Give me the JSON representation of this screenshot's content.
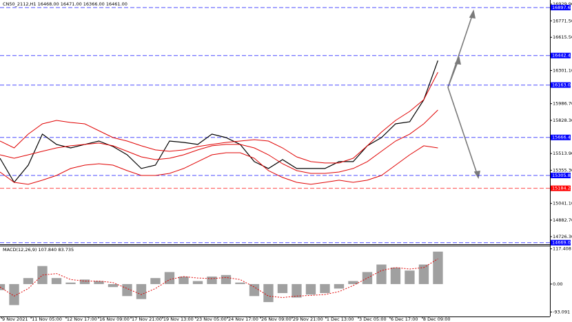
{
  "chart_data": [
    {
      "type": "line",
      "title": "CN50_2112,H1  16468.00 16471.00 16366.00 16461.00",
      "x": [
        0,
        1,
        2,
        3,
        4,
        5,
        6,
        7,
        8,
        9,
        10,
        11,
        12,
        13,
        14,
        15,
        16,
        17,
        18,
        19,
        20,
        21,
        22,
        23,
        24,
        25,
        26,
        27,
        28,
        29,
        30,
        31
      ],
      "xlim": [
        0,
        38.93
      ],
      "ylim": [
        14654,
        16969
      ],
      "yticks": [
        {
          "value": 16929.9,
          "label": "16929.90"
        },
        {
          "value": 16771.5,
          "label": "16771.50"
        },
        {
          "value": 16615.5,
          "label": "16615.50"
        },
        {
          "value": 16301.1,
          "label": "16301.10"
        },
        {
          "value": 15986.7,
          "label": "15986.70"
        },
        {
          "value": 15828.3,
          "label": "15828.30"
        },
        {
          "value": 15513.9,
          "label": "15513.90"
        },
        {
          "value": 15355.3,
          "label": "15355.30"
        },
        {
          "value": 15041.1,
          "label": "15041.10"
        },
        {
          "value": 14882.7,
          "label": "14882.70"
        },
        {
          "value": 14726.3,
          "label": "14726.30"
        }
      ],
      "levels": [
        {
          "value": 16897.6,
          "label": "16897.60",
          "color": "#0000ff"
        },
        {
          "value": 16442.48,
          "label": "16442.48",
          "color": "#0000ff"
        },
        {
          "value": 16163,
          "label": "16163.00",
          "color": "#0000ff"
        },
        {
          "value": 15666.41,
          "label": "15666.41",
          "color": "#0000ff"
        },
        {
          "value": 15305.81,
          "label": "15305.81",
          "color": "#0000ff"
        },
        {
          "value": 15184.26,
          "label": "15184.26",
          "color": "#ff0000"
        },
        {
          "value": 14669.06,
          "label": "14669.06",
          "color": "#0000ff"
        }
      ],
      "series": [
        {
          "color": "#000000",
          "width": 1.2,
          "values": [
            15469,
            15241,
            15404,
            15698,
            15600,
            15567,
            15600,
            15632,
            15580,
            15502,
            15372,
            15404,
            15632,
            15619,
            15600,
            15698,
            15665,
            15600,
            15437,
            15372,
            15456,
            15372,
            15372,
            15372,
            15437,
            15437,
            15587,
            15665,
            15795,
            15815,
            16023,
            16395
          ]
        },
        {
          "color": "#e00000",
          "width": 1,
          "values": [
            15632,
            15567,
            15698,
            15795,
            15828,
            15808,
            15795,
            15730,
            15665,
            15632,
            15587,
            15548,
            15535,
            15548,
            15580,
            15600,
            15619,
            15632,
            15645,
            15632,
            15567,
            15482,
            15437,
            15424,
            15424,
            15469,
            15587,
            15717,
            15828,
            15913,
            16024,
            16284
          ]
        },
        {
          "color": "#e00000",
          "width": 1,
          "values": [
            15502,
            15469,
            15502,
            15535,
            15567,
            15587,
            15600,
            15613,
            15587,
            15535,
            15482,
            15456,
            15469,
            15502,
            15548,
            15587,
            15600,
            15600,
            15567,
            15502,
            15417,
            15352,
            15326,
            15326,
            15339,
            15372,
            15437,
            15535,
            15632,
            15698,
            15795,
            15926
          ]
        },
        {
          "color": "#e00000",
          "width": 1,
          "values": [
            15339,
            15241,
            15222,
            15261,
            15306,
            15372,
            15404,
            15417,
            15404,
            15352,
            15306,
            15306,
            15326,
            15372,
            15437,
            15502,
            15521,
            15521,
            15469,
            15352,
            15287,
            15241,
            15222,
            15241,
            15261,
            15241,
            15261,
            15306,
            15404,
            15502,
            15587,
            15567
          ]
        }
      ]
    },
    {
      "type": "bar",
      "title": "MACD(12,26,9) 107.840 83.735",
      "x": [
        0,
        1,
        2,
        3,
        4,
        5,
        6,
        7,
        8,
        9,
        10,
        11,
        12,
        13,
        14,
        15,
        16,
        17,
        18,
        19,
        20,
        21,
        22,
        23,
        24,
        25,
        26,
        27,
        28,
        29,
        30,
        31
      ],
      "xlim": [
        0,
        38.93
      ],
      "ylim": [
        -108,
        128
      ],
      "yticks": [
        {
          "value": 117.408,
          "label": "117.408"
        },
        {
          "value": 0,
          "label": "0.00"
        },
        {
          "value": -93.091,
          "label": "-93.091"
        }
      ],
      "xticks": [
        {
          "value": 0.1,
          "label": "9 Nov 2021"
        },
        {
          "value": 2.2,
          "label": "11 Nov 05:00"
        },
        {
          "value": 4.68,
          "label": "12 Nov 17:00"
        },
        {
          "value": 6.98,
          "label": "16 Nov 09:00"
        },
        {
          "value": 9.27,
          "label": "17 Nov 21:00"
        },
        {
          "value": 11.51,
          "label": "19 Nov 13:00"
        },
        {
          "value": 13.85,
          "label": "23 Nov 05:00"
        },
        {
          "value": 16.1,
          "label": "24 Nov 17:00"
        },
        {
          "value": 18.44,
          "label": "26 Nov 09:00"
        },
        {
          "value": 20.68,
          "label": "29 Nov 21:00"
        },
        {
          "value": 23.07,
          "label": "1 Dec 13:00"
        },
        {
          "value": 25.37,
          "label": "3 Dec 05:00"
        },
        {
          "value": 27.61,
          "label": "6 Dec 17:00"
        },
        {
          "value": 29.9,
          "label": "8 Dec 09:00"
        }
      ],
      "series": [
        {
          "type": "bar",
          "color": "#a0a0a0",
          "values": [
            -20,
            -70,
            20,
            60,
            20,
            5,
            15,
            10,
            -10,
            -40,
            -50,
            20,
            40,
            25,
            10,
            25,
            30,
            5,
            -40,
            -60,
            -30,
            -45,
            -35,
            -30,
            -15,
            10,
            40,
            65,
            55,
            45,
            65,
            108
          ]
        },
        {
          "type": "line",
          "color": "#e00000",
          "dash": true,
          "values": [
            -10,
            -40,
            -15,
            30,
            35,
            15,
            10,
            10,
            5,
            -15,
            -35,
            -15,
            15,
            25,
            20,
            18,
            22,
            15,
            -10,
            -40,
            -45,
            -40,
            -38,
            -35,
            -25,
            -5,
            20,
            45,
            55,
            50,
            55,
            84
          ]
        }
      ]
    }
  ]
}
